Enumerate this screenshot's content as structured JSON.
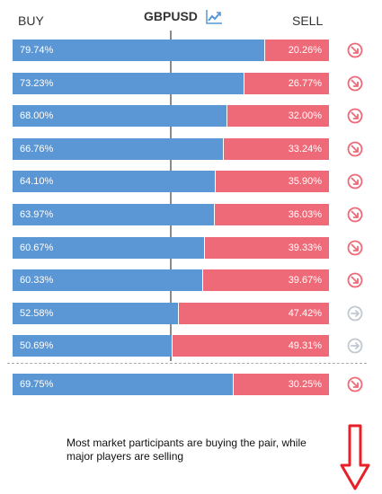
{
  "header": {
    "buy_label": "BUY",
    "pair": "GBPUSD",
    "sell_label": "SELL",
    "trend_icon": "trend-chart-icon"
  },
  "colors": {
    "buy": "#5a97d4",
    "sell": "#ef6a78",
    "icon_down": "#ef6a78",
    "icon_neutral": "#c0c8d0"
  },
  "rows": [
    {
      "buy": "79.74%",
      "sell": "20.26%",
      "icon": "arrow-down-right-icon"
    },
    {
      "buy": "73.23%",
      "sell": "26.77%",
      "icon": "arrow-down-right-icon"
    },
    {
      "buy": "68.00%",
      "sell": "32.00%",
      "icon": "arrow-down-right-icon"
    },
    {
      "buy": "66.76%",
      "sell": "33.24%",
      "icon": "arrow-down-right-icon"
    },
    {
      "buy": "64.10%",
      "sell": "35.90%",
      "icon": "arrow-down-right-icon"
    },
    {
      "buy": "63.97%",
      "sell": "36.03%",
      "icon": "arrow-down-right-icon"
    },
    {
      "buy": "60.67%",
      "sell": "39.33%",
      "icon": "arrow-down-right-icon"
    },
    {
      "buy": "60.33%",
      "sell": "39.67%",
      "icon": "arrow-down-right-icon"
    },
    {
      "buy": "52.58%",
      "sell": "47.42%",
      "icon": "arrow-right-icon"
    },
    {
      "buy": "50.69%",
      "sell": "49.31%",
      "icon": "arrow-right-icon"
    }
  ],
  "summary": {
    "buy": "69.75%",
    "sell": "30.25%",
    "icon": "arrow-down-right-icon"
  },
  "note": "Most market participants are buying the pair, while major players are selling",
  "annotation_icon": "red-down-arrow-icon"
}
